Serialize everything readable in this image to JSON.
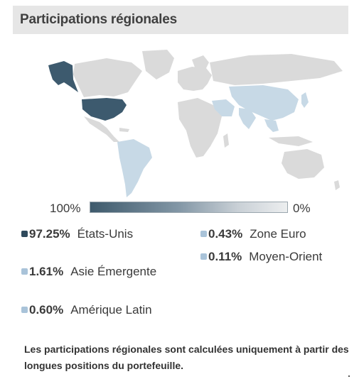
{
  "header": {
    "title": "Participations régionales"
  },
  "legend": {
    "max_label": "100%",
    "min_label": "0%"
  },
  "regions": [
    {
      "pct": "97.25%",
      "name": "États-Unis",
      "color": "#2f4a5c"
    },
    {
      "pct": "0.43%",
      "name": "Zone Euro",
      "color": "#a9c3d9"
    },
    {
      "pct": "0.11%",
      "name": "Moyen-Orient",
      "color": "#a9c3d9"
    },
    {
      "pct": "1.61%",
      "name": "Asie Émergente",
      "color": "#a9c3d9"
    },
    {
      "pct": "0.60%",
      "name": "Amérique Latin",
      "color": "#a9c3d9"
    }
  ],
  "footnote": "Les participations régionales sont calculées uniquement à partir des longues positions du portefeuille.",
  "colors": {
    "land": "#dadada",
    "us": "#3d5a6e",
    "light_region": "#c7d9e6",
    "header_bg": "#e6e6e6"
  }
}
